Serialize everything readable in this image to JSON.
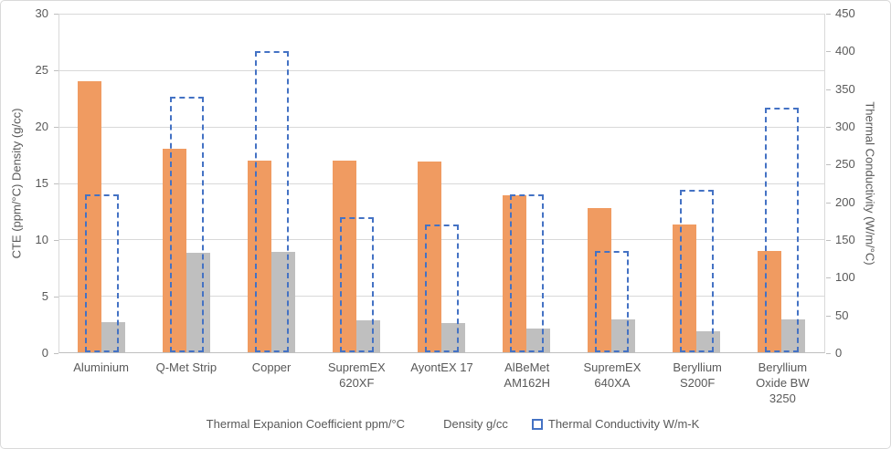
{
  "chart_data": {
    "type": "bar",
    "title": "",
    "categories": [
      "Aluminium",
      "Q-Met Strip",
      "Copper",
      "SupremEX 620XF",
      "AyontEX 17",
      "AlBeMet AM162H",
      "SupremEX 640XA",
      "Beryllium S200F",
      "Beryllium Oxide  BW 3250"
    ],
    "series": [
      {
        "name": "Thermal Expanion Coefficient ppm/°C",
        "axis": "left",
        "style": "solid",
        "color": "#F09B61",
        "values": [
          24,
          18,
          17,
          17,
          16.9,
          13.9,
          12.8,
          11.3,
          9
        ]
      },
      {
        "name": "Density  g/cc",
        "axis": "left",
        "style": "solid",
        "color": "#BFBFBF",
        "values": [
          2.7,
          8.8,
          8.9,
          2.8,
          2.6,
          2.1,
          2.9,
          1.85,
          2.9
        ]
      },
      {
        "name": "Thermal Conductivity  W/m-K",
        "axis": "right",
        "style": "dashed-outline",
        "color": "#4472C4",
        "values": [
          210,
          340,
          400,
          180,
          170,
          210,
          135,
          216,
          325
        ]
      }
    ],
    "left_axis": {
      "label": "CTE (ppm/°C)  Density (g/cc)",
      "min": 0,
      "max": 30,
      "ticks": [
        30,
        25,
        20,
        15,
        10,
        5,
        0
      ]
    },
    "right_axis": {
      "label": "Thermal Conductivity (W/m/°C)",
      "min": 0,
      "max": 450,
      "ticks": [
        450,
        400,
        350,
        300,
        250,
        200,
        150,
        100,
        50,
        0
      ]
    },
    "grid": true,
    "legend_position": "bottom"
  },
  "colors": {
    "background": "#FFFFFF",
    "gridline": "#D9D9D9",
    "axis_line": "#BFBFBF",
    "text": "#595959",
    "cte_orange": "#F09B61",
    "density_gray": "#BFBFBF",
    "conductivity_blue": "#4472C4"
  }
}
